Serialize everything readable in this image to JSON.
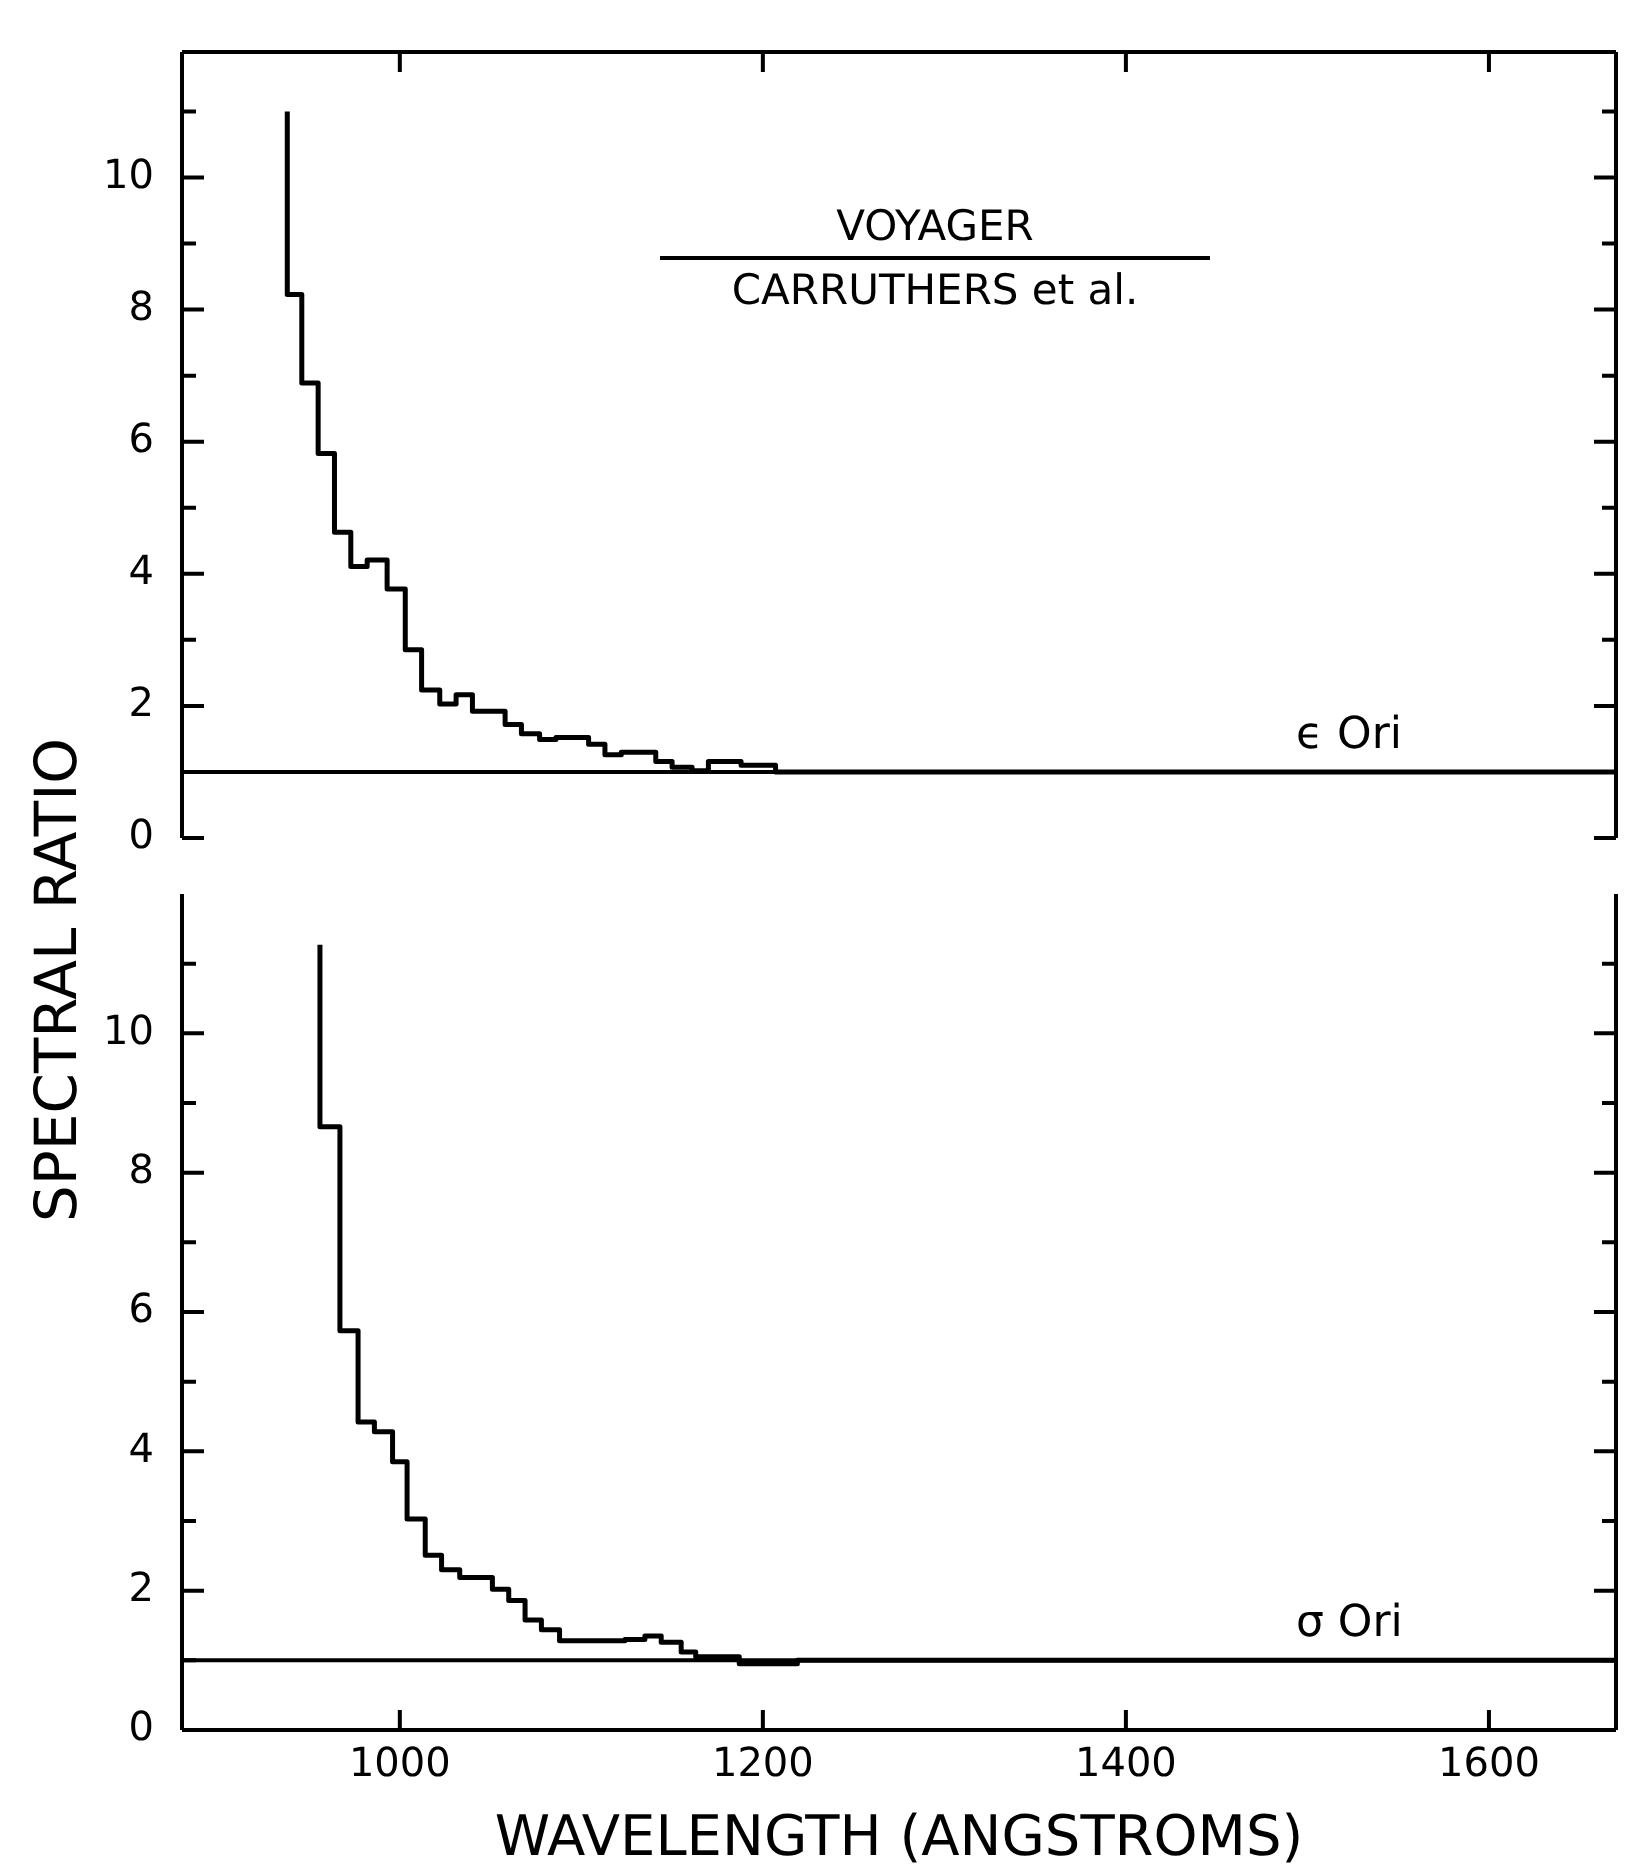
{
  "chart_data": [
    {
      "type": "step",
      "tick_labels": "y",
      "xlim": [
        880,
        1670
      ],
      "xticks": [
        1000,
        1200,
        1400,
        1600
      ],
      "ylim": [
        0,
        11.9
      ],
      "ref_lines": [
        {
          "axis": "y",
          "value": 1,
          "color": "#000000"
        }
      ],
      "yticks": [
        0,
        {
          "value": 1,
          "label": null
        },
        2,
        {
          "value": 3,
          "label": null
        },
        4,
        {
          "value": 5,
          "label": null
        },
        6,
        {
          "value": 7,
          "label": null
        },
        8,
        {
          "value": 9,
          "label": null
        },
        10,
        {
          "value": 11,
          "label": null
        }
      ],
      "annotations": [
        "VOYAGER",
        "CARRUTHERS et al."
      ],
      "series": [
        {
          "name": "ϵ Ori",
          "color": "#000000",
          "x": [
            938,
            946,
            955,
            964,
            973,
            982,
            993,
            1003,
            1012,
            1022,
            1031,
            1040,
            1058,
            1067,
            1077,
            1086,
            1104,
            1113,
            1122,
            1141,
            1150,
            1161,
            1170,
            1188,
            1207,
            1216,
            1670
          ],
          "values": [
            11.0,
            8.23,
            6.89,
            5.82,
            4.63,
            4.11,
            4.21,
            3.77,
            2.85,
            2.24,
            2.03,
            2.17,
            1.92,
            1.72,
            1.58,
            1.49,
            1.52,
            1.42,
            1.26,
            1.3,
            1.16,
            1.07,
            1.02,
            1.16,
            1.1,
            1.0,
            1.0
          ]
        }
      ]
    },
    {
      "type": "step",
      "xlabel": "WAVELENGTH (ANGSTROMS)",
      "ylabel": "SPECTRAL RATIO",
      "xlim": [
        880,
        1670
      ],
      "xticks": [
        1000,
        1200,
        1400,
        1600
      ],
      "ylim": [
        0,
        12
      ],
      "yticks": [
        0,
        {
          "value": 1,
          "label": null
        },
        2,
        {
          "value": 3,
          "label": null
        },
        4,
        {
          "value": 5,
          "label": null
        },
        6,
        {
          "value": 7,
          "label": null
        },
        8,
        {
          "value": 9,
          "label": null
        },
        10,
        {
          "value": 11,
          "label": null
        }
      ],
      "ref_lines": [
        {
          "axis": "y",
          "value": 1,
          "color": "#000000"
        }
      ],
      "series": [
        {
          "name": "σ Ori",
          "color": "#000000",
          "x": [
            956,
            967,
            977,
            986,
            996,
            1004,
            1014,
            1023,
            1033,
            1051,
            1060,
            1069,
            1078,
            1088,
            1124,
            1135,
            1144,
            1155,
            1163,
            1187,
            1219,
            1230,
            1670
          ],
          "values": [
            11.27,
            8.66,
            5.73,
            4.42,
            4.28,
            3.85,
            3.03,
            2.51,
            2.3,
            2.19,
            2.02,
            1.86,
            1.58,
            1.44,
            1.28,
            1.3,
            1.35,
            1.26,
            1.12,
            1.05,
            0.95,
            1.0,
            1.0
          ]
        }
      ]
    }
  ]
}
